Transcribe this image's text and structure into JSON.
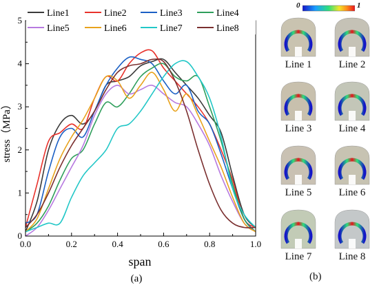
{
  "chart_data": {
    "type": "line",
    "xlabel": "span",
    "ylabel": "stress（MPa）",
    "xlim": [
      0.0,
      1.0
    ],
    "ylim": [
      0,
      5
    ],
    "x_ticks": [
      "0.0",
      "0.2",
      "0.4",
      "0.6",
      "0.8",
      "1.0"
    ],
    "y_ticks": [
      "0",
      "1",
      "2",
      "3",
      "4",
      "5"
    ],
    "grid": false,
    "legend_position": "top",
    "series": [
      {
        "name": "Line1",
        "color": "#3a3a3a",
        "x": [
          0,
          0.05,
          0.1,
          0.15,
          0.2,
          0.25,
          0.3,
          0.35,
          0.4,
          0.45,
          0.5,
          0.55,
          0.6,
          0.65,
          0.7,
          0.75,
          0.8,
          0.85,
          0.9,
          0.95,
          1.0
        ],
        "y": [
          0.1,
          0.8,
          2.0,
          2.6,
          2.8,
          2.6,
          2.9,
          3.5,
          3.6,
          3.7,
          3.95,
          4.05,
          4.1,
          3.8,
          3.5,
          3.2,
          2.8,
          2.4,
          1.4,
          0.5,
          0.2
        ]
      },
      {
        "name": "Line2",
        "color": "#e8312b",
        "x": [
          0,
          0.05,
          0.1,
          0.15,
          0.2,
          0.25,
          0.3,
          0.35,
          0.4,
          0.45,
          0.5,
          0.55,
          0.6,
          0.65,
          0.7,
          0.75,
          0.8,
          0.85,
          0.9,
          0.95,
          1.0
        ],
        "y": [
          0.2,
          1.2,
          2.2,
          2.4,
          2.6,
          2.5,
          3.2,
          3.7,
          3.6,
          4.0,
          4.25,
          4.3,
          3.9,
          3.6,
          3.3,
          3.0,
          2.6,
          2.0,
          1.3,
          0.4,
          0.2
        ]
      },
      {
        "name": "Line3",
        "color": "#1a5fc4",
        "x": [
          0,
          0.05,
          0.1,
          0.15,
          0.2,
          0.25,
          0.3,
          0.35,
          0.4,
          0.45,
          0.5,
          0.55,
          0.6,
          0.65,
          0.7,
          0.75,
          0.8,
          0.85,
          0.9,
          0.95,
          1.0
        ],
        "y": [
          0.3,
          0.5,
          1.5,
          2.3,
          2.5,
          2.3,
          2.9,
          3.5,
          3.9,
          4.15,
          4.1,
          4.0,
          3.6,
          3.3,
          3.5,
          2.9,
          2.6,
          1.9,
          1.1,
          0.4,
          0.1
        ]
      },
      {
        "name": "Line4",
        "color": "#2e9e5b",
        "x": [
          0,
          0.05,
          0.1,
          0.15,
          0.2,
          0.25,
          0.3,
          0.35,
          0.4,
          0.45,
          0.5,
          0.55,
          0.6,
          0.65,
          0.7,
          0.75,
          0.8,
          0.85,
          0.9,
          0.95,
          1.0
        ],
        "y": [
          0.1,
          0.3,
          0.7,
          1.3,
          1.8,
          2.0,
          2.6,
          3.1,
          3.0,
          3.3,
          3.7,
          3.9,
          4.0,
          3.7,
          3.6,
          3.7,
          3.0,
          2.2,
          1.2,
          0.4,
          0.1
        ]
      },
      {
        "name": "Line5",
        "color": "#b77ae0",
        "x": [
          0,
          0.05,
          0.1,
          0.15,
          0.2,
          0.25,
          0.3,
          0.35,
          0.4,
          0.45,
          0.5,
          0.55,
          0.6,
          0.65,
          0.7,
          0.75,
          0.8,
          0.85,
          0.9,
          0.95,
          1.0
        ],
        "y": [
          0.0,
          0.2,
          0.6,
          1.1,
          1.6,
          2.1,
          2.8,
          3.3,
          3.5,
          3.3,
          3.4,
          3.5,
          3.3,
          3.1,
          3.0,
          2.6,
          2.1,
          1.4,
          0.8,
          0.3,
          0.1
        ]
      },
      {
        "name": "Line6",
        "color": "#e8a21c",
        "x": [
          0,
          0.05,
          0.1,
          0.15,
          0.2,
          0.25,
          0.3,
          0.35,
          0.4,
          0.45,
          0.5,
          0.55,
          0.6,
          0.65,
          0.7,
          0.75,
          0.8,
          0.85,
          0.9,
          0.95,
          1.0
        ],
        "y": [
          0.1,
          0.4,
          1.1,
          1.8,
          2.3,
          2.7,
          3.2,
          3.7,
          3.6,
          3.2,
          3.5,
          3.8,
          3.4,
          2.9,
          3.3,
          2.8,
          2.2,
          1.6,
          0.9,
          0.3,
          0.1
        ]
      },
      {
        "name": "Line7",
        "color": "#22c7c7",
        "x": [
          0,
          0.05,
          0.1,
          0.15,
          0.2,
          0.25,
          0.3,
          0.35,
          0.4,
          0.45,
          0.5,
          0.55,
          0.6,
          0.65,
          0.7,
          0.75,
          0.8,
          0.85,
          0.9,
          0.95,
          1.0
        ],
        "y": [
          0.1,
          0.2,
          0.3,
          0.3,
          0.9,
          1.4,
          1.7,
          2.0,
          2.5,
          2.6,
          2.9,
          3.3,
          3.7,
          4.0,
          4.05,
          3.7,
          3.2,
          2.3,
          1.1,
          0.5,
          0.2
        ]
      },
      {
        "name": "Line8",
        "color": "#7a2f2f",
        "x": [
          0,
          0.05,
          0.1,
          0.15,
          0.2,
          0.25,
          0.3,
          0.35,
          0.4,
          0.45,
          0.5,
          0.55,
          0.6,
          0.65,
          0.7,
          0.75,
          0.8,
          0.85,
          0.9,
          0.95,
          1.0
        ],
        "y": [
          0.2,
          0.5,
          1.0,
          1.6,
          2.1,
          2.5,
          2.9,
          3.4,
          3.8,
          3.95,
          4.0,
          4.1,
          4.05,
          3.6,
          2.9,
          2.0,
          1.2,
          0.6,
          0.3,
          0.2,
          0.2
        ]
      }
    ]
  },
  "panel_a_caption": "(a)",
  "panel_b_caption": "(b)",
  "colorbar": {
    "min_label": "0",
    "max_label": "1"
  },
  "thumbnails": [
    {
      "label": "Line 1"
    },
    {
      "label": "Line 2"
    },
    {
      "label": "Line 3"
    },
    {
      "label": "Line 4"
    },
    {
      "label": "Line 5"
    },
    {
      "label": "Line 6"
    },
    {
      "label": "Line 7"
    },
    {
      "label": "Line 8"
    }
  ]
}
